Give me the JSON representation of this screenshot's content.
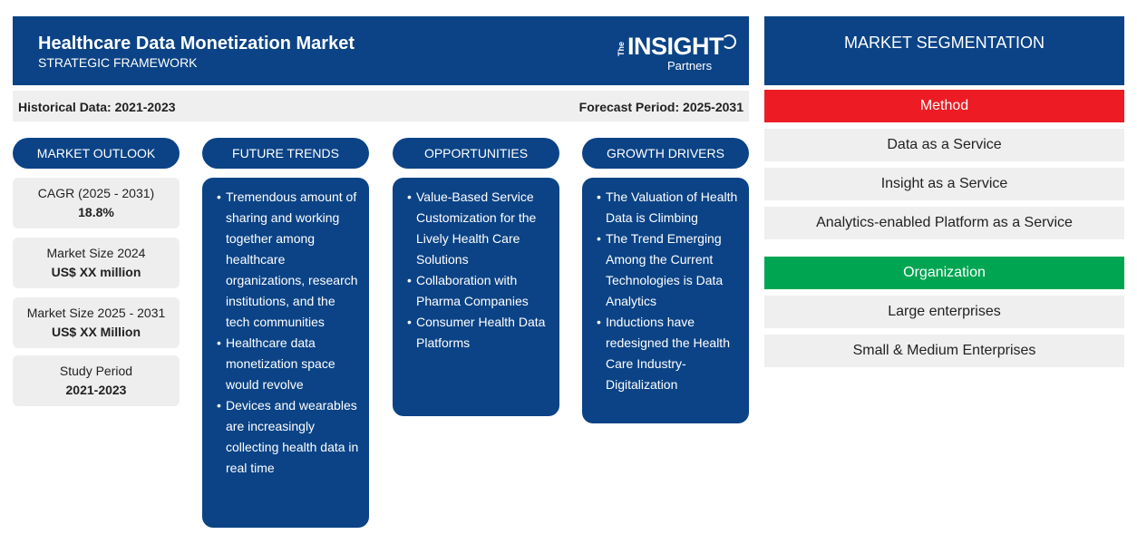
{
  "header": {
    "title": "Healthcare Data Monetization Market",
    "subtitle": "STRATEGIC FRAMEWORK",
    "logo_the": "The",
    "logo_insight": "INSIGHT",
    "logo_partners": "Partners"
  },
  "period": {
    "historical": "Historical Data: 2021-2023",
    "forecast": "Forecast Period: 2025-2031"
  },
  "columns": {
    "market_outlook": "MARKET OUTLOOK",
    "future_trends": "FUTURE TRENDS",
    "opportunities": "OPPORTUNITIES",
    "growth_drivers": "GROWTH DRIVERS"
  },
  "outlook": [
    {
      "label": "CAGR (2025 - 2031)",
      "value": "18.8%"
    },
    {
      "label": "Market Size 2024",
      "value": "US$ XX million"
    },
    {
      "label": "Market Size 2025 - 2031",
      "value": "US$ XX Million"
    },
    {
      "label": "Study Period",
      "value": "2021-2023"
    }
  ],
  "future_trends": [
    "Tremendous amount of sharing and working together among healthcare organizations, research institutions, and the tech communities",
    "Healthcare data monetization space would revolve",
    "Devices and wearables are increasingly collecting health data in real time"
  ],
  "opportunities": [
    "Value-Based Service Customization for the Lively Health Care Solutions",
    "Collaboration with Pharma Companies",
    "Consumer Health Data Platforms"
  ],
  "growth_drivers": [
    "The Valuation of Health Data is Climbing",
    "The Trend Emerging Among the Current Technologies is Data Analytics",
    "Inductions have redesigned the Health Care Industry- Digitalization"
  ],
  "segmentation": {
    "title": "MARKET SEGMENTATION",
    "method": {
      "label": "Method",
      "color": "#ed1c24",
      "items": [
        "Data as a Service",
        "Insight as a Service",
        "Analytics-enabled Platform as a Service"
      ]
    },
    "organization": {
      "label": "Organization",
      "color": "#00a551",
      "items": [
        "Large enterprises",
        "Small & Medium Enterprises"
      ]
    }
  }
}
